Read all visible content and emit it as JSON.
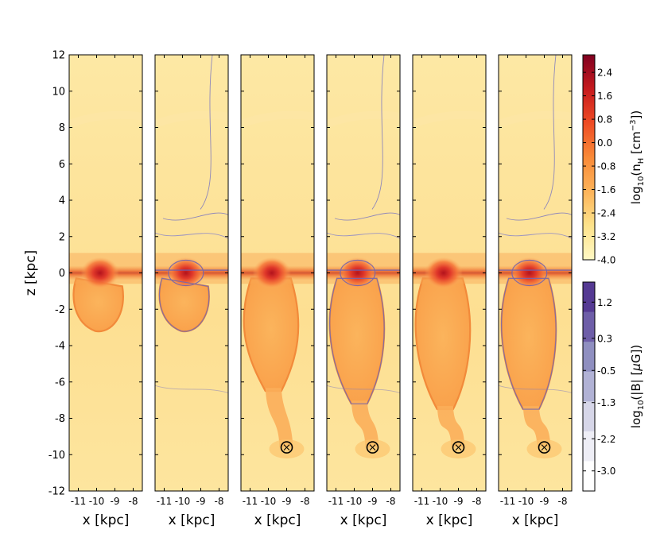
{
  "chart_data": {
    "type": "heatmap",
    "description_panels": 6,
    "axes": {
      "xlabel": "x [kpc]",
      "ylabel": "z [kpc]",
      "x_tick_labels": [
        "-11",
        "-10",
        "-9",
        "-8"
      ],
      "x_tick_values": [
        -11,
        -10,
        -9,
        -8
      ],
      "xlim": [
        -11.5,
        -7.5
      ],
      "ylim": [
        -12,
        12
      ],
      "y_ticks": [
        12,
        10,
        8,
        6,
        4,
        2,
        0,
        -2,
        -4,
        -6,
        -8,
        -10,
        -12
      ]
    },
    "panels": [
      {
        "id": 1,
        "has_bfield_contours": false,
        "has_marker": false,
        "lobe_bottom_z": -3.2,
        "marker_x": null,
        "marker_z": null
      },
      {
        "id": 2,
        "has_bfield_contours": true,
        "has_marker": false,
        "lobe_bottom_z": -3.2,
        "marker_x": null,
        "marker_z": null
      },
      {
        "id": 3,
        "has_bfield_contours": false,
        "has_marker": true,
        "lobe_bottom_z": -6.5,
        "marker_x": -9.0,
        "marker_z": -9.6
      },
      {
        "id": 4,
        "has_bfield_contours": true,
        "has_marker": true,
        "lobe_bottom_z": -7.2,
        "marker_x": -9.0,
        "marker_z": -9.6
      },
      {
        "id": 5,
        "has_bfield_contours": false,
        "has_marker": true,
        "lobe_bottom_z": -7.5,
        "marker_x": -9.0,
        "marker_z": -9.6
      },
      {
        "id": 6,
        "has_bfield_contours": true,
        "has_marker": true,
        "lobe_bottom_z": -7.5,
        "marker_x": -9.0,
        "marker_z": -9.6
      }
    ],
    "colorbars": [
      {
        "name": "density",
        "label": "log10(n_H [cm^-3])",
        "label_main": "log",
        "label_sub": "10",
        "label_rest": "(n",
        "label_h": "H",
        "label_units": " [cm",
        "label_exp": "−3",
        "label_close": "])",
        "range": [
          -4.0,
          3.0
        ],
        "tick_labels": [
          "2.4",
          "1.6",
          "0.8",
          "0.0",
          "-0.8",
          "-1.6",
          "-2.4",
          "-3.2",
          "-4.0"
        ],
        "tick_values": [
          2.4,
          1.6,
          0.8,
          0.0,
          -0.8,
          -1.6,
          -2.4,
          -3.2,
          -4.0
        ],
        "colors": [
          "#fff8c4",
          "#fde28a",
          "#fdb45a",
          "#f98a38",
          "#ee4b24",
          "#c71b1e",
          "#800020"
        ]
      },
      {
        "name": "bfield",
        "label": "log10(|B| [μG])",
        "label_main": "log",
        "label_sub": "10",
        "label_rest": "(|B| [",
        "label_mu": "μ",
        "label_units": "G])",
        "range": [
          -3.5,
          1.7
        ],
        "tick_labels": [
          "1.2",
          "0.3",
          "-0.5",
          "-1.3",
          "-2.2",
          "-3.0"
        ],
        "tick_values": [
          1.2,
          0.3,
          -0.5,
          -1.3,
          -2.2,
          -3.0
        ],
        "bands": [
          "#553a93",
          "#6e5ea8",
          "#8f8fc0",
          "#b1b2d5",
          "#d6d6e8",
          "#eeeef6",
          "#ffffff"
        ]
      }
    ]
  }
}
